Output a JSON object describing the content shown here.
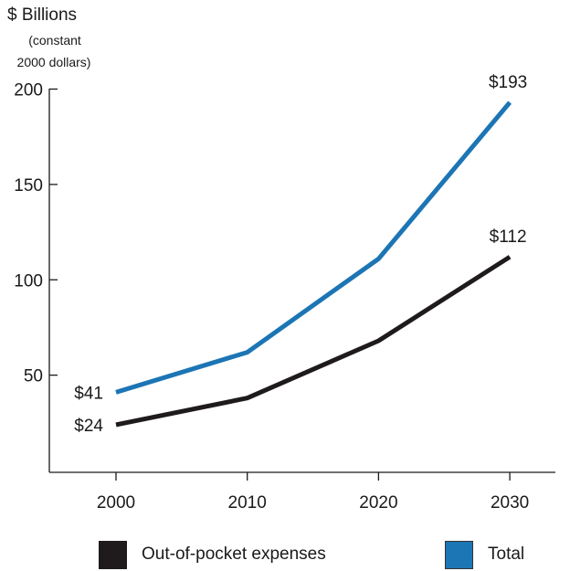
{
  "colors": {
    "total": "#1c75b4",
    "oop": "#1f1b1c",
    "axis": "#1a1a1a"
  },
  "legend": {
    "oop_label": "Out-of-pocket expenses",
    "total_label": "Total"
  },
  "chart_data": {
    "type": "line",
    "ylabel": "$ Billions",
    "ylabel_note": [
      "(constant",
      "2000 dollars)"
    ],
    "x": [
      2000,
      2010,
      2020,
      2030
    ],
    "ylim": [
      0,
      200
    ],
    "yticks": [
      50,
      100,
      150,
      200
    ],
    "series": [
      {
        "name": "Total",
        "key": "total",
        "values": [
          41,
          62,
          111,
          193
        ]
      },
      {
        "name": "Out-of-pocket expenses",
        "key": "oop",
        "values": [
          24,
          38,
          68,
          112
        ]
      }
    ],
    "annotations": [
      {
        "series": "total",
        "index": 0,
        "text": "$41",
        "anchor": "left"
      },
      {
        "series": "oop",
        "index": 0,
        "text": "$24",
        "anchor": "left"
      },
      {
        "series": "total",
        "index": 3,
        "text": "$193",
        "anchor": "above"
      },
      {
        "series": "oop",
        "index": 3,
        "text": "$112",
        "anchor": "above"
      }
    ]
  }
}
